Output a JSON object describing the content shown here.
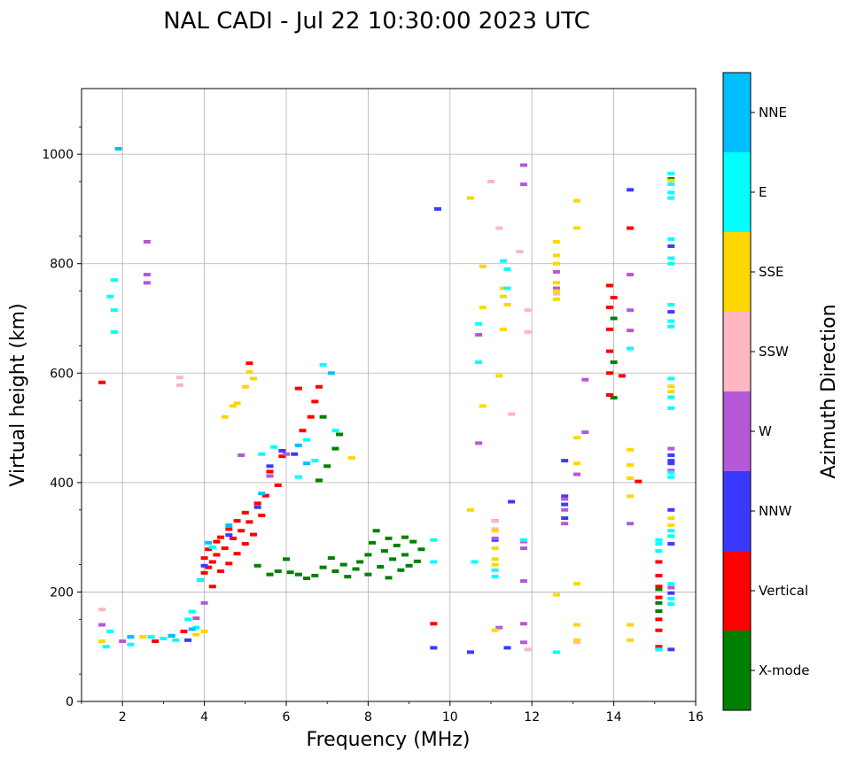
{
  "chart_data": {
    "type": "scatter",
    "title": "NAL CADI - Jul 22 10:30:00 2023 UTC",
    "xlabel": "Frequency (MHz)",
    "ylabel": "Virtual height (km)",
    "xlim": [
      1,
      16
    ],
    "ylim": [
      0,
      1120
    ],
    "xticks": [
      2,
      4,
      6,
      8,
      10,
      12,
      14,
      16
    ],
    "yticks": [
      0,
      200,
      400,
      600,
      800,
      1000
    ],
    "xtick_labels": [
      "2",
      "4",
      "6",
      "8",
      "10",
      "12",
      "14",
      "16"
    ],
    "ytick_labels": [
      "0",
      "200",
      "400",
      "600",
      "800",
      "1000"
    ],
    "grid": true,
    "colorbar": {
      "label": "Azimuth Direction",
      "categories": [
        "X-mode",
        "Vertical",
        "NNW",
        "W",
        "SSW",
        "SSE",
        "E",
        "NNE"
      ],
      "colors": [
        "#008000",
        "#ff0000",
        "#3a3aff",
        "#b558d8",
        "#ffb6c1",
        "#ffd700",
        "#00ffff",
        "#00bfff"
      ]
    },
    "series": [
      {
        "name": "X-mode",
        "points": [
          [
            5.3,
            248
          ],
          [
            5.6,
            232
          ],
          [
            5.8,
            238
          ],
          [
            6.0,
            260
          ],
          [
            6.1,
            236
          ],
          [
            6.3,
            232
          ],
          [
            6.5,
            225
          ],
          [
            6.7,
            230
          ],
          [
            6.9,
            245
          ],
          [
            7.1,
            262
          ],
          [
            7.2,
            238
          ],
          [
            7.4,
            250
          ],
          [
            7.5,
            228
          ],
          [
            7.7,
            242
          ],
          [
            7.8,
            255
          ],
          [
            8.0,
            268
          ],
          [
            8.0,
            232
          ],
          [
            8.1,
            290
          ],
          [
            8.2,
            312
          ],
          [
            8.3,
            246
          ],
          [
            8.4,
            275
          ],
          [
            8.5,
            298
          ],
          [
            8.5,
            226
          ],
          [
            8.6,
            260
          ],
          [
            8.7,
            285
          ],
          [
            8.8,
            240
          ],
          [
            8.9,
            300
          ],
          [
            8.9,
            268
          ],
          [
            9.0,
            248
          ],
          [
            9.1,
            292
          ],
          [
            9.2,
            256
          ],
          [
            9.3,
            278
          ],
          [
            7.0,
            430
          ],
          [
            7.2,
            462
          ],
          [
            7.3,
            488
          ],
          [
            6.8,
            404
          ],
          [
            6.9,
            520
          ],
          [
            14.0,
            555
          ],
          [
            14.0,
            620
          ],
          [
            14.0,
            700
          ],
          [
            15.1,
            205
          ],
          [
            15.1,
            165
          ],
          [
            15.1,
            180
          ],
          [
            15.4,
            955
          ]
        ]
      },
      {
        "name": "Vertical",
        "points": [
          [
            1.5,
            583
          ],
          [
            2.8,
            110
          ],
          [
            3.2,
            120
          ],
          [
            3.5,
            128
          ],
          [
            3.9,
            222
          ],
          [
            4.0,
            235
          ],
          [
            4.0,
            262
          ],
          [
            4.1,
            245
          ],
          [
            4.1,
            278
          ],
          [
            4.2,
            210
          ],
          [
            4.2,
            255
          ],
          [
            4.3,
            292
          ],
          [
            4.3,
            268
          ],
          [
            4.4,
            238
          ],
          [
            4.4,
            300
          ],
          [
            4.5,
            280
          ],
          [
            4.6,
            252
          ],
          [
            4.6,
            315
          ],
          [
            4.7,
            298
          ],
          [
            4.8,
            270
          ],
          [
            4.8,
            330
          ],
          [
            4.9,
            312
          ],
          [
            5.0,
            288
          ],
          [
            5.0,
            345
          ],
          [
            5.1,
            328
          ],
          [
            5.2,
            305
          ],
          [
            5.3,
            362
          ],
          [
            5.4,
            340
          ],
          [
            5.5,
            376
          ],
          [
            5.6,
            420
          ],
          [
            5.8,
            395
          ],
          [
            5.9,
            448
          ],
          [
            6.4,
            495
          ],
          [
            6.6,
            520
          ],
          [
            6.7,
            548
          ],
          [
            6.8,
            575
          ],
          [
            5.1,
            618
          ],
          [
            6.3,
            572
          ],
          [
            9.6,
            142
          ],
          [
            13.9,
            560
          ],
          [
            13.9,
            600
          ],
          [
            13.9,
            640
          ],
          [
            13.9,
            680
          ],
          [
            13.9,
            720
          ],
          [
            13.9,
            760
          ],
          [
            14.0,
            738
          ],
          [
            14.2,
            595
          ],
          [
            14.4,
            865
          ],
          [
            14.6,
            402
          ],
          [
            15.1,
            255
          ],
          [
            15.1,
            230
          ],
          [
            15.1,
            210
          ],
          [
            15.1,
            190
          ],
          [
            15.1,
            150
          ],
          [
            15.1,
            130
          ],
          [
            15.1,
            100
          ]
        ]
      },
      {
        "name": "NNW",
        "points": [
          [
            3.6,
            112
          ],
          [
            4.0,
            248
          ],
          [
            4.6,
            304
          ],
          [
            5.3,
            355
          ],
          [
            5.6,
            430
          ],
          [
            5.9,
            458
          ],
          [
            6.2,
            452
          ],
          [
            9.6,
            98
          ],
          [
            9.7,
            900
          ],
          [
            10.5,
            90
          ],
          [
            11.1,
            330
          ],
          [
            11.1,
            295
          ],
          [
            11.4,
            98
          ],
          [
            11.5,
            365
          ],
          [
            12.8,
            440
          ],
          [
            12.8,
            375
          ],
          [
            12.8,
            360
          ],
          [
            12.8,
            335
          ],
          [
            14.4,
            935
          ],
          [
            15.1,
            95
          ],
          [
            15.4,
            450
          ],
          [
            15.4,
            440
          ],
          [
            15.4,
            435
          ],
          [
            15.4,
            350
          ],
          [
            15.4,
            288
          ],
          [
            15.4,
            198
          ],
          [
            15.4,
            95
          ],
          [
            15.4,
            712
          ],
          [
            15.4,
            832
          ]
        ]
      },
      {
        "name": "W",
        "points": [
          [
            1.5,
            140
          ],
          [
            2.0,
            110
          ],
          [
            2.6,
            840
          ],
          [
            2.6,
            780
          ],
          [
            2.6,
            765
          ],
          [
            3.8,
            152
          ],
          [
            4.0,
            180
          ],
          [
            4.9,
            450
          ],
          [
            5.6,
            412
          ],
          [
            6.0,
            452
          ],
          [
            10.7,
            670
          ],
          [
            10.7,
            472
          ],
          [
            11.1,
            298
          ],
          [
            11.2,
            135
          ],
          [
            11.8,
            980
          ],
          [
            11.8,
            945
          ],
          [
            11.8,
            292
          ],
          [
            11.8,
            280
          ],
          [
            11.8,
            220
          ],
          [
            11.8,
            142
          ],
          [
            11.8,
            108
          ],
          [
            12.6,
            785
          ],
          [
            12.6,
            755
          ],
          [
            12.8,
            370
          ],
          [
            12.8,
            350
          ],
          [
            12.8,
            325
          ],
          [
            13.1,
            415
          ],
          [
            13.3,
            588
          ],
          [
            13.3,
            492
          ],
          [
            14.4,
            780
          ],
          [
            14.4,
            715
          ],
          [
            14.4,
            678
          ],
          [
            14.4,
            325
          ],
          [
            15.4,
            462
          ],
          [
            15.4,
            422
          ],
          [
            15.4,
            208
          ]
        ]
      },
      {
        "name": "SSW",
        "points": [
          [
            1.5,
            168
          ],
          [
            3.4,
            578
          ],
          [
            3.4,
            592
          ],
          [
            11.0,
            950
          ],
          [
            11.1,
            330
          ],
          [
            11.1,
            315
          ],
          [
            11.2,
            865
          ],
          [
            11.5,
            525
          ],
          [
            11.7,
            822
          ],
          [
            11.9,
            715
          ],
          [
            11.9,
            675
          ],
          [
            11.9,
            95
          ],
          [
            12.6,
            745
          ],
          [
            13.1,
            108
          ]
        ]
      },
      {
        "name": "SSE",
        "points": [
          [
            1.5,
            110
          ],
          [
            2.5,
            118
          ],
          [
            3.8,
            122
          ],
          [
            4.0,
            128
          ],
          [
            5.1,
            602
          ],
          [
            5.2,
            590
          ],
          [
            5.0,
            575
          ],
          [
            4.8,
            545
          ],
          [
            4.7,
            540
          ],
          [
            4.5,
            520
          ],
          [
            7.6,
            445
          ],
          [
            10.5,
            920
          ],
          [
            10.5,
            350
          ],
          [
            10.8,
            795
          ],
          [
            10.8,
            720
          ],
          [
            10.8,
            540
          ],
          [
            11.1,
            312
          ],
          [
            11.1,
            280
          ],
          [
            11.1,
            260
          ],
          [
            11.1,
            250
          ],
          [
            11.1,
            130
          ],
          [
            11.2,
            595
          ],
          [
            11.3,
            755
          ],
          [
            11.3,
            740
          ],
          [
            11.4,
            725
          ],
          [
            11.3,
            680
          ],
          [
            12.6,
            840
          ],
          [
            12.6,
            815
          ],
          [
            12.6,
            800
          ],
          [
            12.6,
            765
          ],
          [
            12.6,
            750
          ],
          [
            12.6,
            735
          ],
          [
            12.6,
            195
          ],
          [
            13.1,
            915
          ],
          [
            13.1,
            865
          ],
          [
            13.1,
            482
          ],
          [
            13.1,
            435
          ],
          [
            13.1,
            215
          ],
          [
            13.1,
            140
          ],
          [
            13.1,
            112
          ],
          [
            14.4,
            460
          ],
          [
            14.4,
            432
          ],
          [
            14.4,
            408
          ],
          [
            14.4,
            375
          ],
          [
            14.4,
            140
          ],
          [
            14.4,
            112
          ],
          [
            15.4,
            952
          ],
          [
            15.4,
            576
          ],
          [
            15.4,
            566
          ],
          [
            15.4,
            335
          ],
          [
            15.4,
            322
          ]
        ]
      },
      {
        "name": "E",
        "points": [
          [
            1.6,
            100
          ],
          [
            1.7,
            128
          ],
          [
            1.7,
            740
          ],
          [
            1.8,
            770
          ],
          [
            1.8,
            715
          ],
          [
            1.8,
            675
          ],
          [
            2.2,
            104
          ],
          [
            2.7,
            118
          ],
          [
            3.0,
            115
          ],
          [
            3.3,
            112
          ],
          [
            3.6,
            150
          ],
          [
            3.7,
            164
          ],
          [
            3.8,
            135
          ],
          [
            3.9,
            222
          ],
          [
            4.2,
            282
          ],
          [
            5.4,
            452
          ],
          [
            5.7,
            465
          ],
          [
            6.3,
            410
          ],
          [
            6.5,
            478
          ],
          [
            6.7,
            440
          ],
          [
            6.9,
            615
          ],
          [
            7.2,
            495
          ],
          [
            9.6,
            295
          ],
          [
            9.6,
            255
          ],
          [
            10.6,
            255
          ],
          [
            10.7,
            690
          ],
          [
            10.7,
            620
          ],
          [
            11.1,
            240
          ],
          [
            11.1,
            228
          ],
          [
            11.3,
            805
          ],
          [
            11.4,
            790
          ],
          [
            11.4,
            755
          ],
          [
            11.8,
            295
          ],
          [
            12.6,
            90
          ],
          [
            14.4,
            645
          ],
          [
            15.1,
            295
          ],
          [
            15.1,
            288
          ],
          [
            15.1,
            275
          ],
          [
            15.1,
            95
          ],
          [
            15.4,
            965
          ],
          [
            15.4,
            945
          ],
          [
            15.4,
            930
          ],
          [
            15.4,
            920
          ],
          [
            15.4,
            845
          ],
          [
            15.4,
            810
          ],
          [
            15.4,
            800
          ],
          [
            15.4,
            725
          ],
          [
            15.4,
            695
          ],
          [
            15.4,
            685
          ],
          [
            15.4,
            590
          ],
          [
            15.4,
            556
          ],
          [
            15.4,
            536
          ],
          [
            15.4,
            418
          ],
          [
            15.4,
            410
          ],
          [
            15.4,
            312
          ],
          [
            15.4,
            302
          ],
          [
            15.4,
            215
          ],
          [
            15.4,
            188
          ],
          [
            15.4,
            178
          ]
        ]
      },
      {
        "name": "NNE",
        "points": [
          [
            1.9,
            1010
          ],
          [
            2.2,
            118
          ],
          [
            3.2,
            120
          ],
          [
            3.7,
            132
          ],
          [
            4.1,
            290
          ],
          [
            4.6,
            322
          ],
          [
            5.4,
            380
          ],
          [
            6.3,
            468
          ],
          [
            6.5,
            435
          ],
          [
            7.1,
            600
          ]
        ]
      }
    ]
  }
}
